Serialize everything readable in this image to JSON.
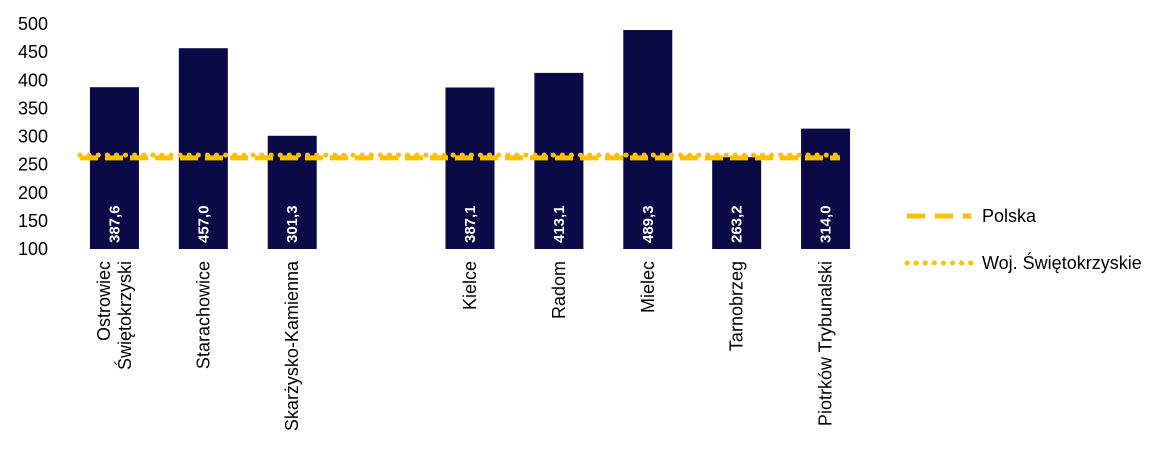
{
  "chart_data": {
    "type": "bar",
    "categories": [
      [
        "Ostrowiec",
        "Świętokrzyski"
      ],
      [
        "Starachowice"
      ],
      [
        "Skarżysko-Kamienna"
      ],
      [
        ""
      ],
      [
        "Kielce"
      ],
      [
        "Radom"
      ],
      [
        "Mielec"
      ],
      [
        "Tarnobrzeg"
      ],
      [
        "Piotrków Trybunalski"
      ]
    ],
    "values": [
      387.6,
      457.0,
      301.3,
      null,
      387.1,
      413.1,
      489.3,
      263.2,
      314.0
    ],
    "value_labels": [
      "387,6",
      "457,0",
      "301,3",
      "",
      "387,1",
      "413,1",
      "489,3",
      "263,2",
      "314,0"
    ],
    "ylim": [
      100,
      500
    ],
    "yticks": [
      100,
      150,
      200,
      250,
      300,
      350,
      400,
      450,
      500
    ],
    "grid": false,
    "legend_position": "right",
    "lines": [
      {
        "name": "Polska",
        "value": 262,
        "style": "dashed",
        "color": "#FFC000"
      },
      {
        "name": "Woj. Świętokrzyskie",
        "value": 267,
        "style": "dotted",
        "color": "#FFC000"
      }
    ],
    "bar_color": "#0A0A46",
    "title": "",
    "xlabel": "",
    "ylabel": ""
  }
}
